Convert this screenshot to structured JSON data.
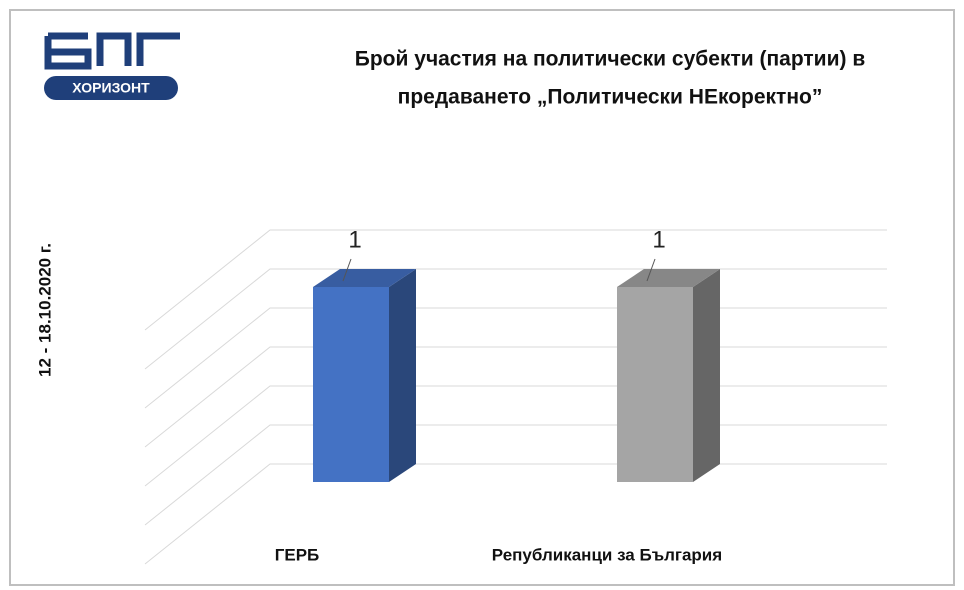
{
  "logo_text": "ХОРИЗОНТ",
  "chart_data": {
    "type": "bar3d",
    "title": [
      "Брой участия на политически субекти (партии) в",
      "предаването „Политически НЕкоректно”"
    ],
    "y_label": "12 - 18.10.2020 г.",
    "categories": [
      "ГЕРБ",
      "Републиканци за България"
    ],
    "values": [
      1,
      1
    ],
    "colors": [
      "#4472c4",
      "#a5a5a5"
    ],
    "ylim": [
      0,
      1.2
    ],
    "yticks": [
      0,
      0.2,
      0.4,
      0.6,
      0.8,
      1,
      1.2
    ],
    "grid": true
  }
}
